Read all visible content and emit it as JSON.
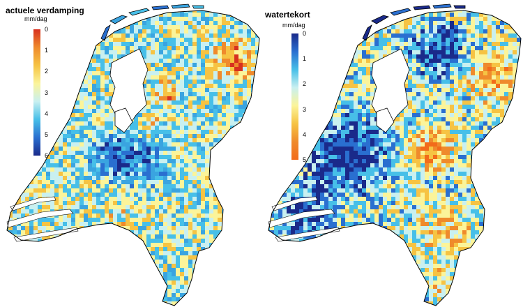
{
  "panels": [
    {
      "title": "actuele verdamping",
      "unit": "mm/dag",
      "ticks": [
        "0",
        "1",
        "2",
        "3",
        "4",
        "5",
        "6"
      ],
      "colors": [
        "#d7301f",
        "#ef8a2c",
        "#f6c343",
        "#fbf49a",
        "#c9f0f0",
        "#47bfe8",
        "#2a6fd0",
        "#1a2a8a"
      ],
      "base_color": "#3aa4e0"
    },
    {
      "title": "watertekort",
      "unit": "mm/dag",
      "ticks": [
        "0",
        "1",
        "2",
        "3",
        "4",
        "5"
      ],
      "colors": [
        "#1a2a8a",
        "#2a6fd0",
        "#47bfe8",
        "#c9f0f0",
        "#fbf49a",
        "#f6c343",
        "#ef8a2c",
        "#f26b1a"
      ],
      "base_color": "#3b8fe0"
    }
  ]
}
